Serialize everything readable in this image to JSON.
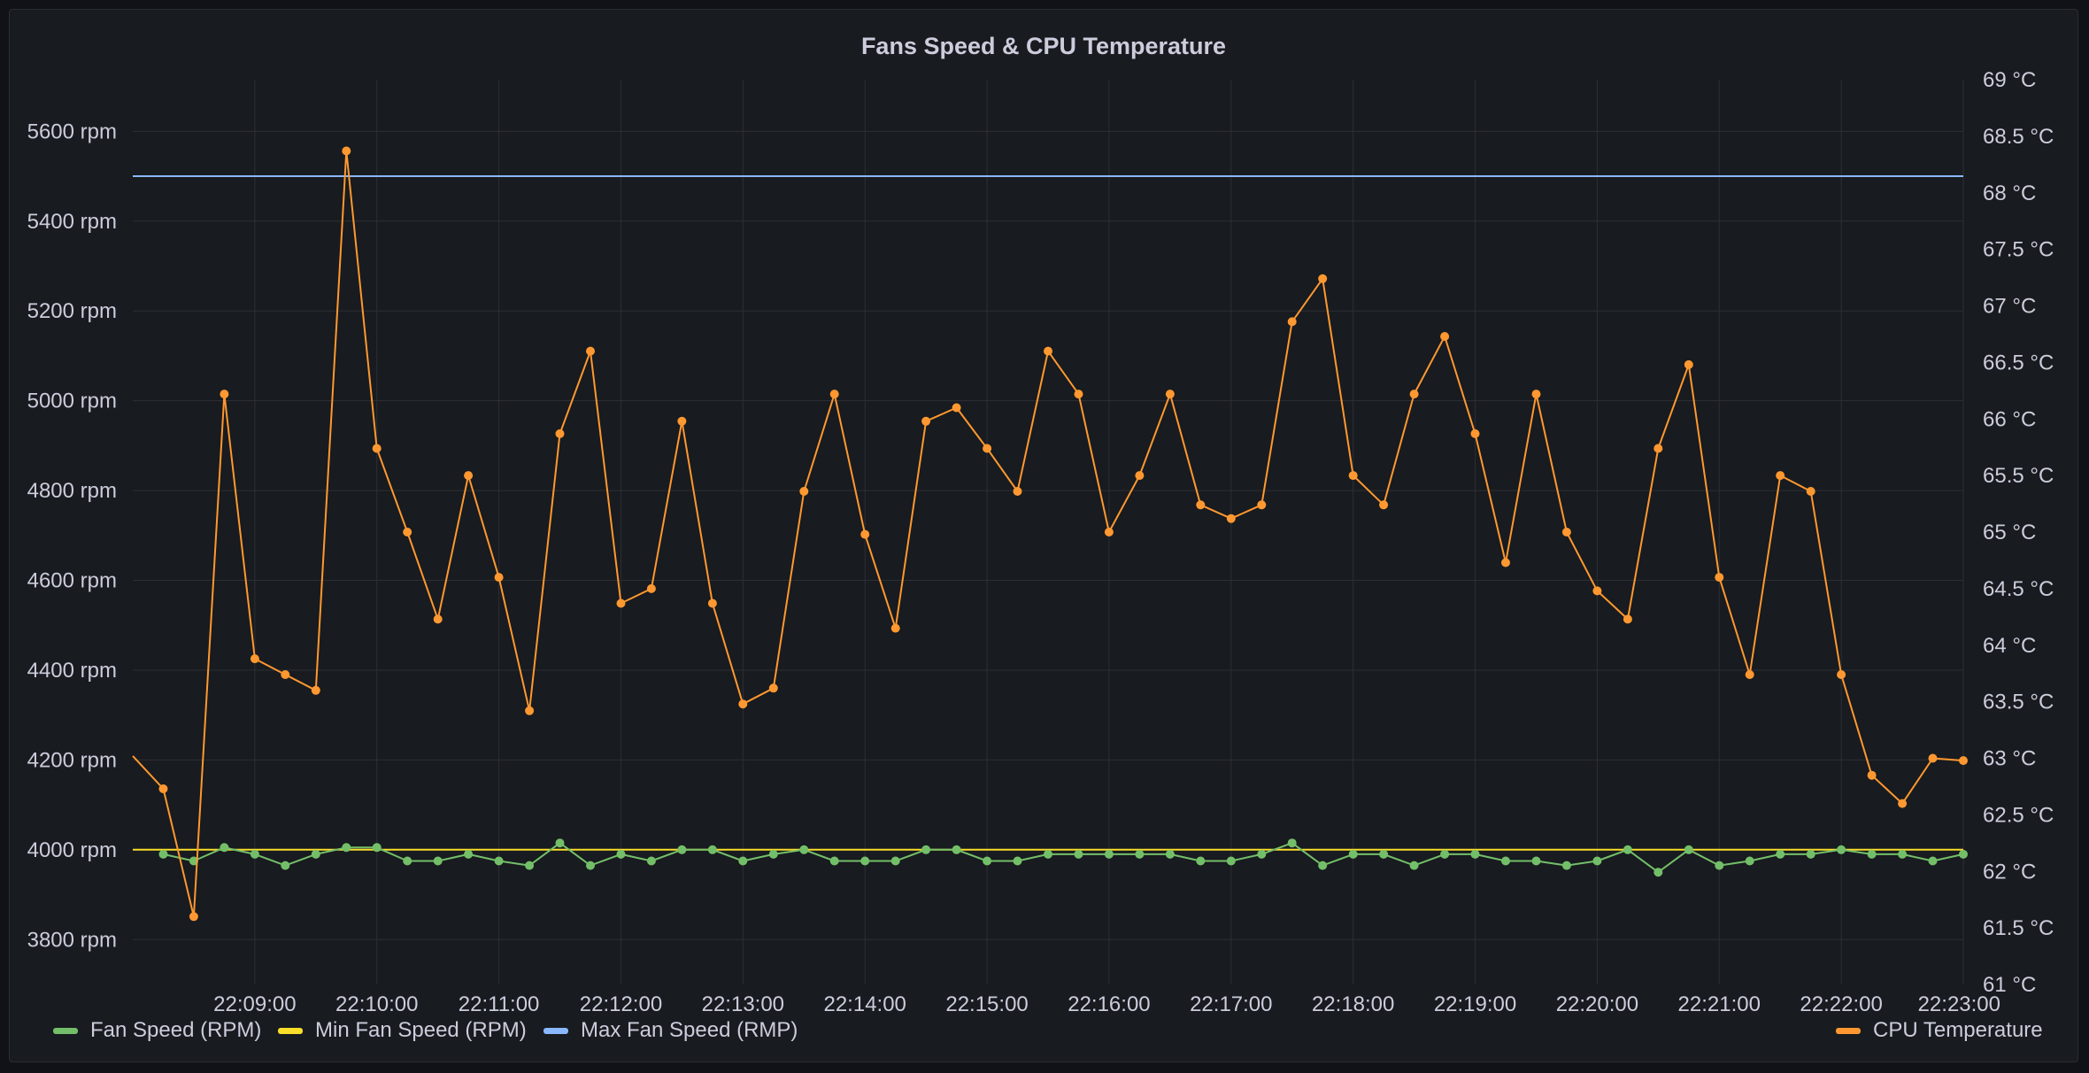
{
  "panel": {
    "title": "Fans Speed & CPU Temperature"
  },
  "colors": {
    "fan": "#73bf69",
    "min": "#fade2a",
    "max": "#8ab8ff",
    "cpu": "#ff9830",
    "grid": "#2c2f35",
    "text": "#ccccdc"
  },
  "legend": {
    "fan": "Fan Speed (RPM)",
    "min": "Min Fan Speed (RPM)",
    "max": "Max Fan Speed (RMP)",
    "cpu": "CPU Temperature"
  },
  "chart_data": {
    "type": "line",
    "title": "Fans Speed & CPU Temperature",
    "x_start": "22:08:00",
    "x_end": "22:23:00",
    "x_ticks": [
      "22:09:00",
      "22:10:00",
      "22:11:00",
      "22:12:00",
      "22:13:00",
      "22:14:00",
      "22:15:00",
      "22:16:00",
      "22:17:00",
      "22:18:00",
      "22:19:00",
      "22:20:00",
      "22:21:00",
      "22:22:00",
      "22:23:00"
    ],
    "y_left": {
      "unit": "rpm",
      "range": [
        3700,
        5715
      ],
      "ticks": [
        3800,
        4000,
        4200,
        4400,
        4600,
        4800,
        5000,
        5200,
        5400,
        5600
      ],
      "tick_labels": [
        "3800 rpm",
        "4000 rpm",
        "4200 rpm",
        "4400 rpm",
        "4600 rpm",
        "4800 rpm",
        "5000 rpm",
        "5200 rpm",
        "5400 rpm",
        "5600 rpm"
      ]
    },
    "y_right": {
      "unit": "°C",
      "range": [
        61,
        69
      ],
      "ticks": [
        61,
        61.5,
        62,
        62.5,
        63,
        63.5,
        64,
        64.5,
        65,
        65.5,
        66,
        66.5,
        67,
        67.5,
        68,
        68.5,
        69
      ],
      "tick_labels": [
        "61 °C",
        "61.5 °C",
        "62 °C",
        "62.5 °C",
        "63 °C",
        "63.5 °C",
        "64 °C",
        "64.5 °C",
        "65 °C",
        "65.5 °C",
        "66 °C",
        "66.5 °C",
        "67 °C",
        "67.5 °C",
        "68 °C",
        "68.5 °C",
        "69 °C"
      ]
    },
    "grid": true,
    "legend_position": "bottom",
    "series": [
      {
        "key": "fan",
        "name": "Fan Speed (RPM)",
        "axis": "left",
        "points": true,
        "x": [
          "22:08:15",
          "22:08:30",
          "22:08:45",
          "22:09:00",
          "22:09:15",
          "22:09:30",
          "22:09:45",
          "22:10:00",
          "22:10:15",
          "22:10:30",
          "22:10:45",
          "22:11:00",
          "22:11:15",
          "22:11:30",
          "22:11:45",
          "22:12:00",
          "22:12:15",
          "22:12:30",
          "22:12:45",
          "22:13:00",
          "22:13:15",
          "22:13:30",
          "22:13:45",
          "22:14:00",
          "22:14:15",
          "22:14:30",
          "22:14:45",
          "22:15:00",
          "22:15:15",
          "22:15:30",
          "22:15:45",
          "22:16:00",
          "22:16:15",
          "22:16:30",
          "22:16:45",
          "22:17:00",
          "22:17:15",
          "22:17:30",
          "22:17:45",
          "22:18:00",
          "22:18:15",
          "22:18:30",
          "22:18:45",
          "22:19:00",
          "22:19:15",
          "22:19:30",
          "22:19:45",
          "22:20:00",
          "22:20:15",
          "22:20:30",
          "22:20:45",
          "22:21:00",
          "22:21:15",
          "22:21:30",
          "22:21:45",
          "22:22:00",
          "22:22:15",
          "22:22:30",
          "22:22:45",
          "22:23:00"
        ],
        "values": [
          3990,
          3975,
          4005,
          3990,
          3965,
          3990,
          4005,
          4005,
          3975,
          3975,
          3990,
          3975,
          3965,
          4015,
          3965,
          3990,
          3975,
          4000,
          4000,
          3975,
          3990,
          4000,
          3975,
          3975,
          3975,
          4000,
          4000,
          3975,
          3975,
          3990,
          3990,
          3990,
          3990,
          3990,
          3975,
          3975,
          3990,
          4015,
          3965,
          3990,
          3990,
          3965,
          3990,
          3990,
          3975,
          3975,
          3965,
          3975,
          4000,
          3950,
          4000,
          3965,
          3975,
          3990,
          3990,
          4000,
          3990,
          3990,
          3975,
          3990
        ]
      },
      {
        "key": "min",
        "name": "Min Fan Speed (RPM)",
        "axis": "left",
        "points": false,
        "x": [
          "22:08:00",
          "22:23:00"
        ],
        "values": [
          4000,
          4000
        ]
      },
      {
        "key": "max",
        "name": "Max Fan Speed (RMP)",
        "axis": "left",
        "points": false,
        "x": [
          "22:08:00",
          "22:23:00"
        ],
        "values": [
          5500,
          5500
        ]
      },
      {
        "key": "cpu",
        "name": "CPU Temperature",
        "axis": "right",
        "points": true,
        "x": [
          "22:08:00",
          "22:08:15",
          "22:08:30",
          "22:08:45",
          "22:09:00",
          "22:09:15",
          "22:09:30",
          "22:09:45",
          "22:10:00",
          "22:10:15",
          "22:10:30",
          "22:10:45",
          "22:11:00",
          "22:11:15",
          "22:11:30",
          "22:11:45",
          "22:12:00",
          "22:12:15",
          "22:12:30",
          "22:12:45",
          "22:13:00",
          "22:13:15",
          "22:13:30",
          "22:13:45",
          "22:14:00",
          "22:14:15",
          "22:14:30",
          "22:14:45",
          "22:15:00",
          "22:15:15",
          "22:15:30",
          "22:15:45",
          "22:16:00",
          "22:16:15",
          "22:16:30",
          "22:16:45",
          "22:17:00",
          "22:17:15",
          "22:17:30",
          "22:17:45",
          "22:18:00",
          "22:18:15",
          "22:18:30",
          "22:18:45",
          "22:19:00",
          "22:19:15",
          "22:19:30",
          "22:19:45",
          "22:20:00",
          "22:20:15",
          "22:20:30",
          "22:20:45",
          "22:21:00",
          "22:21:15",
          "22:21:30",
          "22:21:45",
          "22:22:00",
          "22:22:15",
          "22:22:30",
          "22:22:45",
          "22:23:00"
        ],
        "values": [
          63.02,
          62.73,
          61.6,
          66.22,
          63.88,
          63.74,
          63.6,
          68.37,
          65.74,
          65.0,
          64.23,
          65.5,
          64.6,
          63.42,
          65.87,
          66.6,
          64.37,
          64.5,
          65.98,
          64.37,
          63.48,
          63.62,
          65.36,
          66.22,
          64.98,
          64.15,
          65.98,
          66.1,
          65.74,
          65.36,
          66.6,
          66.22,
          65.0,
          65.5,
          66.22,
          65.24,
          65.12,
          65.24,
          66.86,
          67.24,
          65.5,
          65.24,
          66.22,
          66.73,
          65.87,
          64.73,
          66.22,
          65.0,
          64.48,
          64.23,
          65.74,
          66.48,
          64.6,
          63.74,
          65.5,
          65.36,
          63.74,
          62.85,
          62.6,
          63.0,
          62.98
        ]
      }
    ]
  }
}
